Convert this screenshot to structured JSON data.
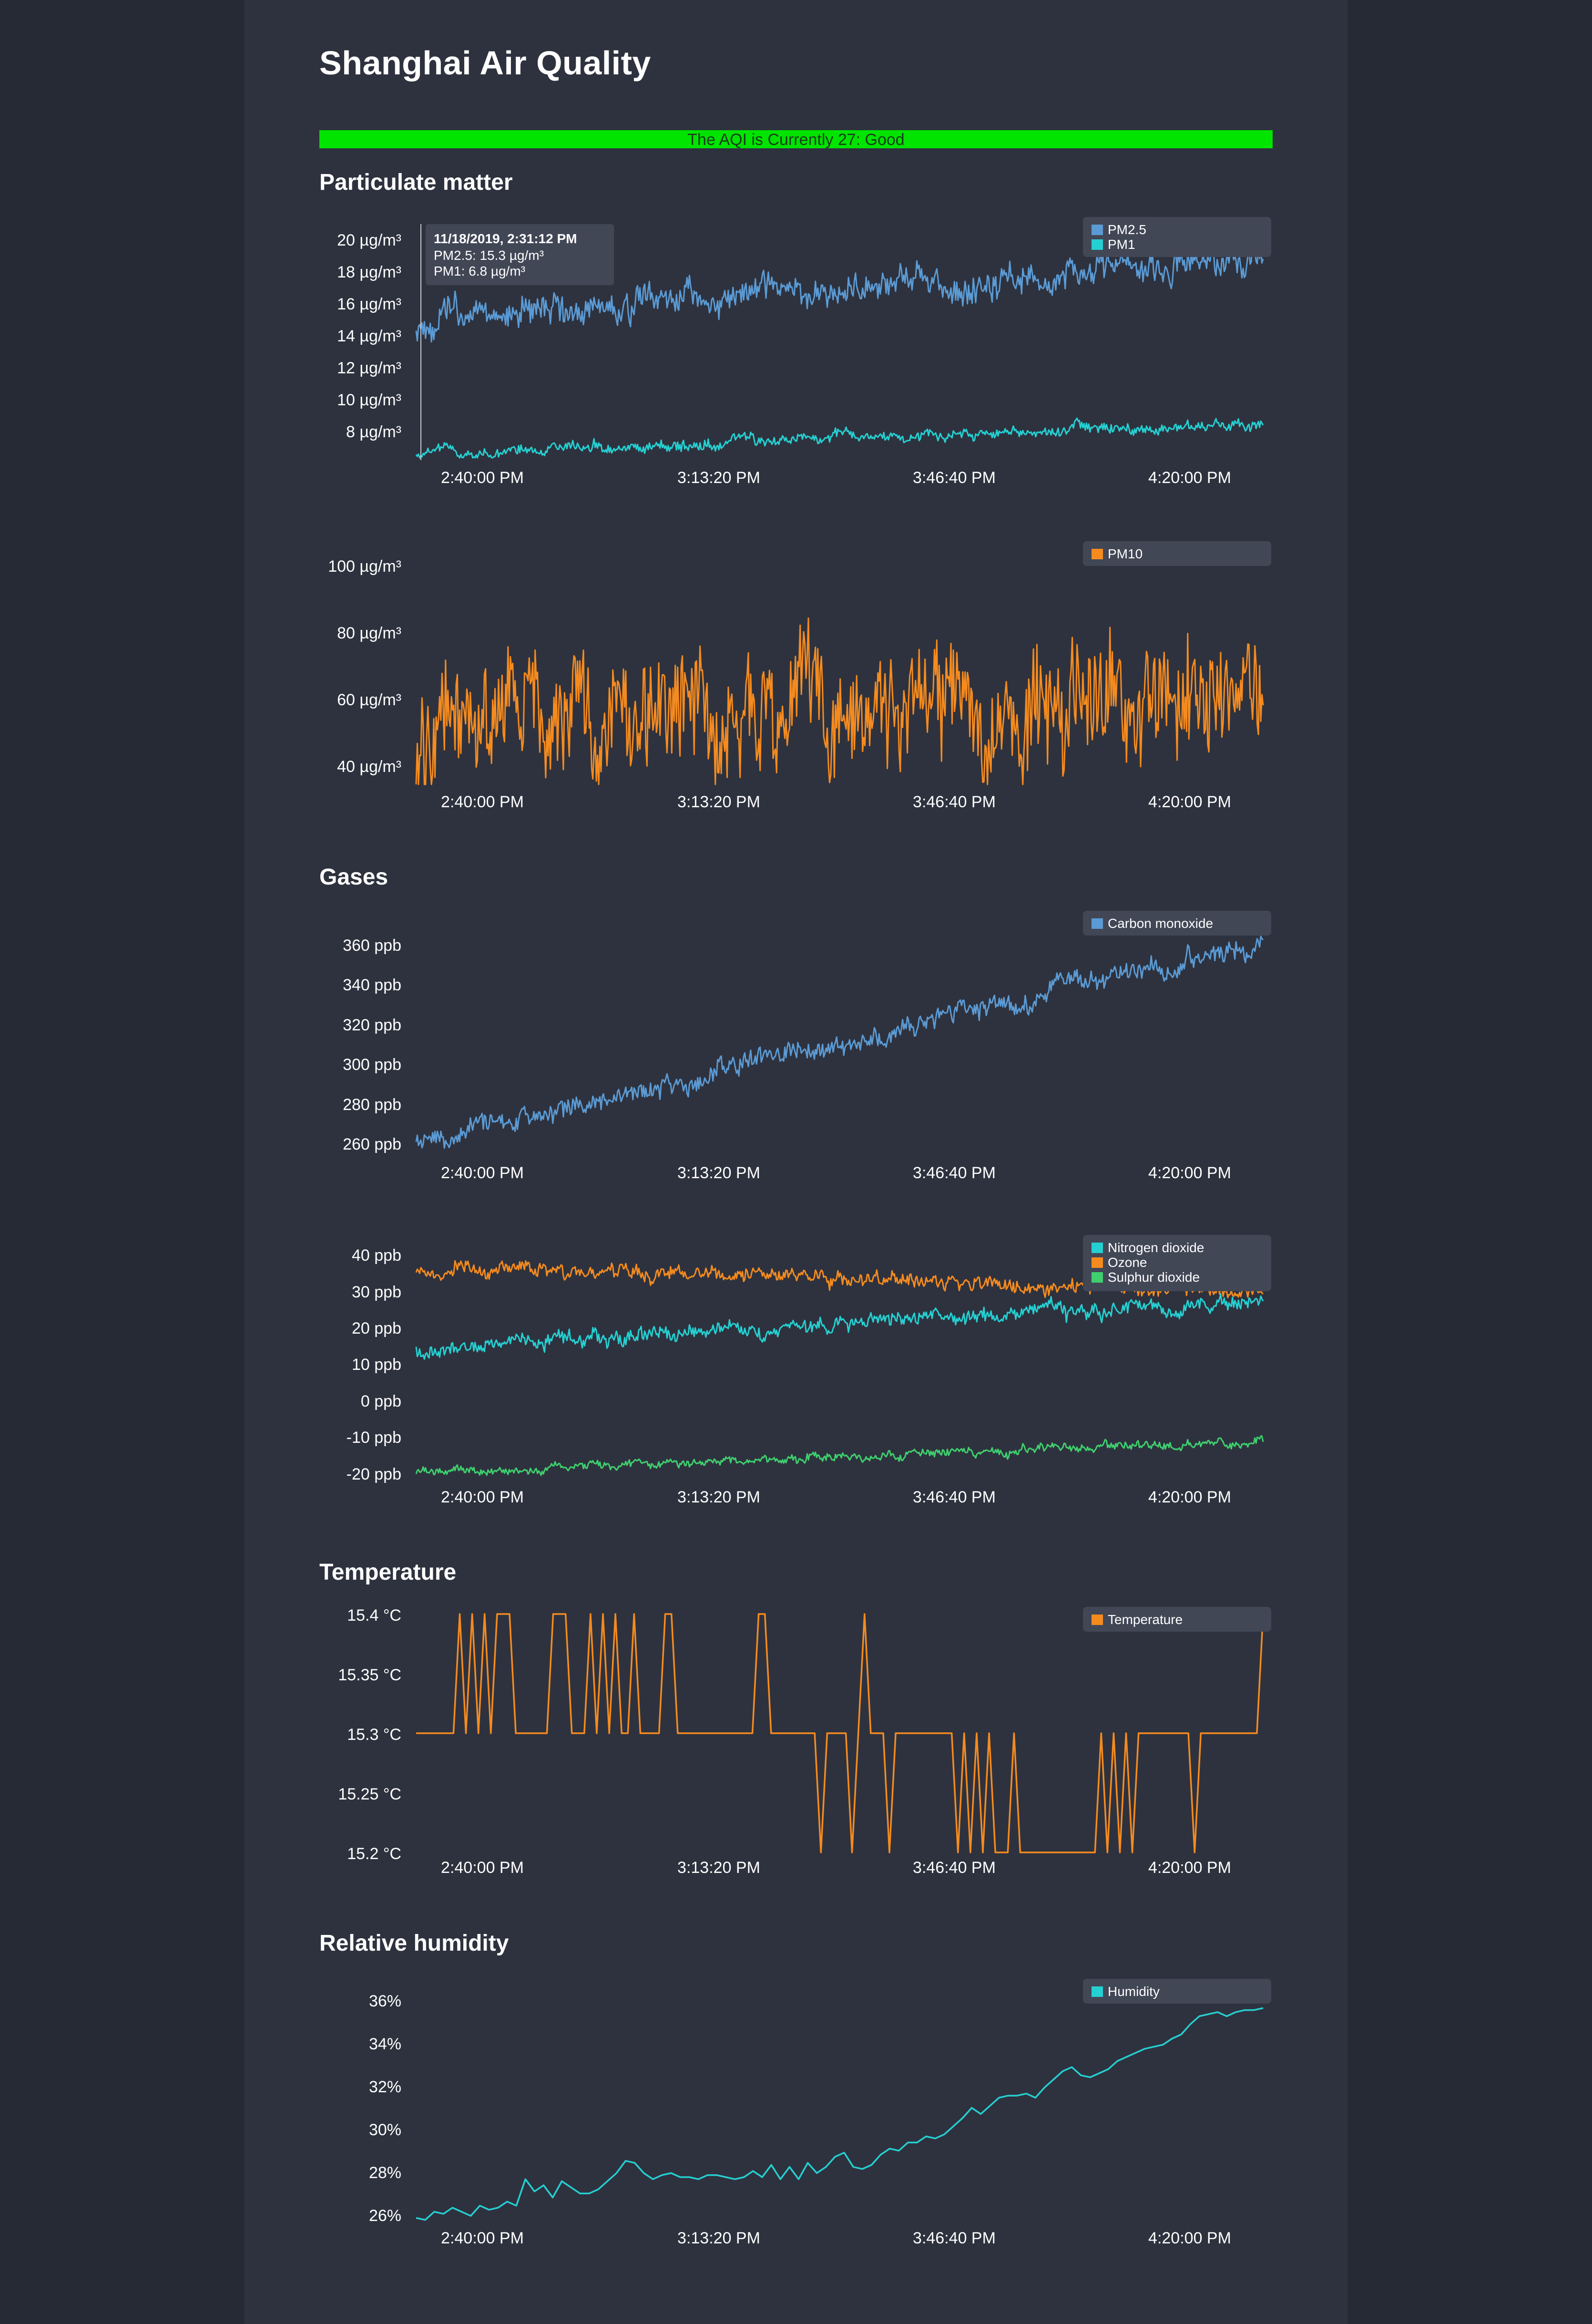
{
  "page": {
    "title": "Shanghai Air Quality",
    "aqi_banner": "The AQI is Currently 27: Good"
  },
  "sections": [
    "Particulate matter",
    "Gases",
    "Temperature",
    "Relative humidity"
  ],
  "colors": {
    "background": "#2e323e",
    "aqi_good": "#00e400",
    "blue": "#5b9bd5",
    "cyan": "#25d0d2",
    "orange": "#f58b1f",
    "green": "#3fcf6e",
    "legend_box": "#424756"
  },
  "x_ticks": [
    "2:40:00 PM",
    "3:13:20 PM",
    "3:46:40 PM",
    "4:20:00 PM"
  ],
  "x_range": [
    "2:31:12 PM",
    "4:29:40 PM"
  ],
  "tooltip": {
    "title": "11/18/2019, 2:31:12 PM",
    "lines": [
      "PM2.5: 15.3 µg/m³",
      "PM1: 6.8 µg/m³"
    ]
  },
  "chart_data": [
    {
      "type": "line",
      "id": "pm-fine",
      "yticks": [
        "20 µg/m³",
        "18 µg/m³",
        "16 µg/m³",
        "14 µg/m³",
        "12 µg/m³",
        "10 µg/m³",
        "8 µg/m³"
      ],
      "ylim": [
        6.4,
        21.2
      ],
      "series": [
        {
          "name": "PM2.5",
          "color": "#5b9bd5",
          "start": 15.3,
          "end": 19.6,
          "noise": 1.0
        },
        {
          "name": "PM1",
          "color": "#25d0d2",
          "start": 6.8,
          "end": 8.8,
          "noise": 0.35
        }
      ]
    },
    {
      "type": "line",
      "id": "pm10",
      "yticks": [
        "100 µg/m³",
        "80 µg/m³",
        "60 µg/m³",
        "40 µg/m³"
      ],
      "ylim": [
        35,
        102
      ],
      "series": [
        {
          "name": "PM10",
          "color": "#f58b1f",
          "start": 52,
          "end": 62,
          "noise": 12
        }
      ]
    },
    {
      "type": "line",
      "id": "co",
      "yticks": [
        "360 ppb",
        "340 ppb",
        "320 ppb",
        "300 ppb",
        "280 ppb",
        "260 ppb"
      ],
      "ylim": [
        254,
        366
      ],
      "series": [
        {
          "name": "Carbon monoxide",
          "color": "#5b9bd5",
          "start": 262,
          "end": 361,
          "noise": 5
        }
      ]
    },
    {
      "type": "line",
      "id": "gases",
      "yticks": [
        "40 ppb",
        "30 ppb",
        "20 ppb",
        "10 ppb",
        "0 ppb",
        "-10 ppb",
        "-20 ppb"
      ],
      "ylim": [
        -23,
        43
      ],
      "series": [
        {
          "name": "Nitrogen dioxide",
          "color": "#25d0d2",
          "start": 15,
          "end": 29,
          "noise": 2.2
        },
        {
          "name": "Ozone",
          "color": "#f58b1f",
          "start": 38,
          "end": 31,
          "noise": 2.0
        },
        {
          "name": "Sulphur dioxide",
          "color": "#3fcf6e",
          "start": -20,
          "end": -11,
          "noise": 1.2
        }
      ]
    },
    {
      "type": "line",
      "id": "temperature",
      "yticks": [
        "15.4 °C",
        "15.35 °C",
        "15.3 °C",
        "15.25 °C",
        "15.2 °C"
      ],
      "ylim": [
        15.2,
        15.4
      ],
      "series": [
        {
          "name": "Temperature",
          "color": "#f58b1f",
          "values": [
            15.3,
            15.3,
            15.3,
            15.3,
            15.3,
            15.3,
            15.3,
            15.4,
            15.3,
            15.4,
            15.3,
            15.4,
            15.3,
            15.4,
            15.4,
            15.4,
            15.3,
            15.3,
            15.3,
            15.3,
            15.3,
            15.3,
            15.4,
            15.4,
            15.4,
            15.3,
            15.3,
            15.3,
            15.4,
            15.3,
            15.4,
            15.3,
            15.4,
            15.3,
            15.3,
            15.4,
            15.3,
            15.3,
            15.3,
            15.3,
            15.4,
            15.4,
            15.3,
            15.3,
            15.3,
            15.3,
            15.3,
            15.3,
            15.3,
            15.3,
            15.3,
            15.3,
            15.3,
            15.3,
            15.3,
            15.4,
            15.4,
            15.3,
            15.3,
            15.3,
            15.3,
            15.3,
            15.3,
            15.3,
            15.3,
            15.2,
            15.3,
            15.3,
            15.3,
            15.3,
            15.2,
            15.3,
            15.4,
            15.3,
            15.3,
            15.3,
            15.2,
            15.3,
            15.3,
            15.3,
            15.3,
            15.3,
            15.3,
            15.3,
            15.3,
            15.3,
            15.3,
            15.2,
            15.3,
            15.2,
            15.3,
            15.2,
            15.3,
            15.2,
            15.2,
            15.2,
            15.3,
            15.2,
            15.2,
            15.2,
            15.2,
            15.2,
            15.2,
            15.2,
            15.2,
            15.2,
            15.2,
            15.2,
            15.2,
            15.2,
            15.3,
            15.2,
            15.3,
            15.2,
            15.3,
            15.2,
            15.3,
            15.3,
            15.3,
            15.3,
            15.3,
            15.3,
            15.3,
            15.3,
            15.3,
            15.2,
            15.3,
            15.3,
            15.3,
            15.3,
            15.3,
            15.3,
            15.3,
            15.3,
            15.3,
            15.3,
            15.4
          ]
        }
      ]
    },
    {
      "type": "line",
      "id": "humidity",
      "yticks": [
        "36%",
        "34%",
        "32%",
        "30%",
        "28%",
        "26%"
      ],
      "ylim": [
        25.6,
        36.6
      ],
      "series": [
        {
          "name": "Humidity",
          "color": "#25d0d2",
          "values": [
            25.8,
            25.7,
            26.1,
            26.0,
            26.3,
            26.1,
            25.9,
            26.4,
            26.2,
            26.3,
            26.6,
            26.4,
            27.7,
            27.1,
            27.4,
            26.8,
            27.6,
            27.3,
            27.0,
            27.0,
            27.2,
            27.6,
            28.0,
            28.6,
            28.5,
            28.0,
            27.7,
            27.9,
            28.0,
            27.8,
            27.8,
            27.7,
            27.9,
            27.9,
            27.8,
            27.7,
            27.8,
            28.1,
            27.8,
            28.4,
            27.7,
            28.3,
            27.7,
            28.5,
            28.0,
            28.3,
            28.8,
            29.0,
            28.3,
            28.2,
            28.4,
            28.9,
            29.2,
            29.1,
            29.5,
            29.5,
            29.8,
            29.7,
            29.9,
            30.3,
            30.7,
            31.2,
            30.9,
            31.3,
            31.7,
            31.8,
            31.8,
            31.9,
            31.7,
            32.2,
            32.6,
            33.0,
            33.2,
            32.8,
            32.7,
            32.9,
            33.1,
            33.5,
            33.7,
            33.9,
            34.1,
            34.2,
            34.3,
            34.6,
            34.8,
            35.3,
            35.7,
            35.8,
            35.9,
            35.7,
            35.9,
            36.0,
            36.0,
            36.1
          ]
        }
      ]
    }
  ]
}
